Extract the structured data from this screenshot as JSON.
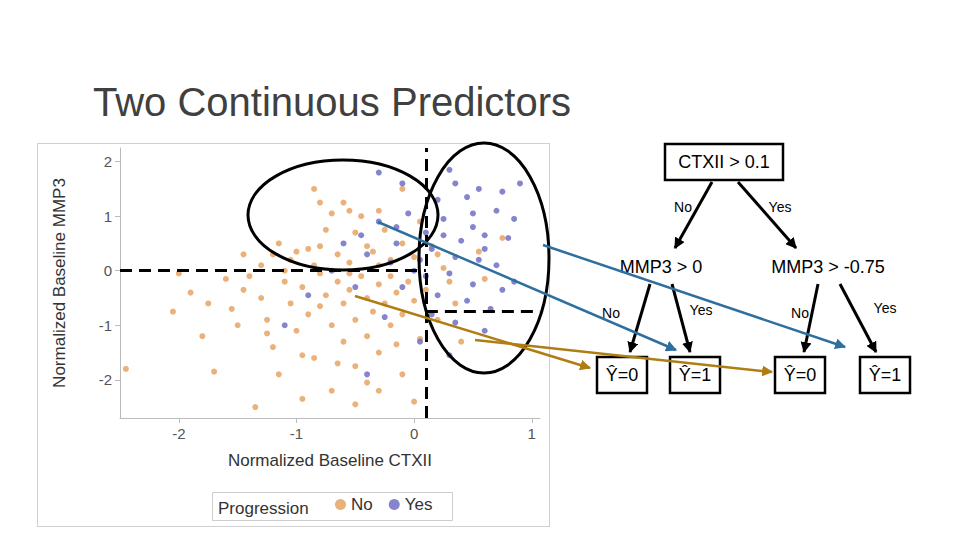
{
  "title": "Two Continuous Predictors",
  "chart_data": {
    "type": "scatter",
    "xlabel": "Normalized Baseline CTXII",
    "ylabel": "Normalized Baseline MMP3",
    "legend_title": "Progression",
    "legend": "bottom",
    "grid": false,
    "xlim": [
      -2.5,
      1.07
    ],
    "ylim": [
      -2.7,
      2.25
    ],
    "xticks": [
      -2,
      -1,
      0,
      1
    ],
    "yticks": [
      -2,
      -1,
      0,
      1,
      2
    ],
    "series": [
      {
        "name": "No",
        "color": "#e8a96c",
        "marker": "circle",
        "x": [
          -0.85,
          -0.8,
          -0.6,
          -0.55,
          -0.3,
          -0.1,
          -0.7,
          -0.5,
          -0.45,
          -0.25,
          -0.1,
          0.05,
          -0.8,
          -0.9,
          -1.0,
          -1.2,
          -1.05,
          -0.65,
          -0.4,
          -0.2,
          0.0,
          0.15,
          0.2,
          0.25,
          -0.3,
          -0.55,
          -0.85,
          -1.3,
          -1.9,
          -2.05,
          -2.45,
          -1.8,
          -1.7,
          -1.55,
          -1.45,
          -1.4,
          -1.3,
          -1.25,
          -1.2,
          -1.15,
          -1.1,
          -1.05,
          -1.0,
          -0.95,
          -0.9,
          -0.85,
          -0.8,
          -0.75,
          -0.7,
          -0.7,
          -0.65,
          -0.6,
          -0.6,
          -0.55,
          -0.5,
          -0.5,
          -0.45,
          -0.4,
          -0.4,
          -0.35,
          -0.3,
          -0.3,
          -0.25,
          -0.2,
          -0.2,
          -0.15,
          -0.1,
          -0.1,
          -0.05,
          0.0,
          0.05,
          0.1,
          0.0,
          -0.4,
          -1.35,
          -0.95,
          -1.6,
          -1.75,
          -1.5,
          -1.1,
          -0.95,
          -0.65,
          -0.3,
          -1.25,
          -0.8,
          -0.55,
          -0.15,
          0.35,
          0.4,
          0.2,
          0.6,
          0.75,
          0.55,
          0.3,
          -0.75,
          -0.35,
          -1.15,
          -1.45,
          -2.0,
          -0.5
        ],
        "values": [
          1.5,
          1.25,
          1.25,
          1.1,
          1.1,
          1.5,
          1.05,
          0.7,
          1.0,
          0.75,
          0.5,
          0.9,
          0.45,
          0.4,
          0.35,
          0.3,
          0.2,
          0.3,
          0.45,
          0.2,
          0.25,
          0.45,
          0.3,
          0.05,
          0.1,
          0.15,
          0.1,
          0.1,
          -0.4,
          -0.75,
          -1.8,
          -1.2,
          -1.85,
          -0.7,
          -0.35,
          -0.1,
          -0.5,
          -0.9,
          -1.4,
          -1.9,
          -0.2,
          -0.6,
          -1.1,
          -0.3,
          -0.8,
          -1.6,
          -0.05,
          -0.45,
          -1.0,
          -2.2,
          -0.2,
          -0.6,
          -1.3,
          -0.35,
          -0.9,
          -1.75,
          -0.1,
          -0.5,
          -1.2,
          -0.75,
          -0.25,
          -1.5,
          -0.6,
          -1.0,
          -0.1,
          -0.4,
          -0.8,
          -1.9,
          -0.2,
          -0.55,
          -1.25,
          -0.35,
          -2.4,
          -2.05,
          -2.5,
          -2.35,
          -0.15,
          -0.6,
          -1.0,
          0.0,
          -1.55,
          -1.7,
          -2.2,
          -1.15,
          -0.65,
          -0.05,
          -1.35,
          -0.6,
          -1.3,
          -0.9,
          -0.15,
          0.6,
          0.35,
          -0.2,
          0.75,
          0.35,
          0.5,
          0.3,
          -0.05,
          -2.45
        ]
      },
      {
        "name": "Yes",
        "color": "#7878c8",
        "marker": "circle",
        "x": [
          -0.3,
          -0.1,
          0.3,
          0.35,
          0.55,
          0.75,
          0.9,
          0.2,
          0.5,
          0.7,
          -0.05,
          -0.3,
          -0.45,
          -0.15,
          -0.6,
          0.1,
          0.25,
          0.4,
          0.6,
          0.8,
          0.15,
          0.35,
          0.55,
          0.7,
          -0.4,
          -0.2,
          0.05,
          0.3,
          0.5,
          0.75,
          0.2,
          0.45,
          -0.1,
          0.65,
          0.15,
          0.35,
          0.6,
          0.05,
          0.3,
          -0.5,
          -0.7,
          -0.9,
          -1.1,
          -0.25,
          0.0,
          0.1,
          0.85,
          0.5,
          0.85,
          -0.4,
          0.45,
          0.25,
          0.6,
          -0.15
        ],
        "values": [
          1.8,
          1.6,
          1.85,
          1.6,
          1.5,
          1.45,
          1.6,
          1.3,
          1.05,
          1.1,
          1.05,
          0.9,
          0.65,
          0.5,
          0.5,
          0.7,
          0.65,
          0.55,
          0.65,
          0.6,
          0.4,
          0.25,
          0.2,
          0.1,
          0.3,
          0.15,
          0.2,
          -0.05,
          -0.25,
          -0.35,
          -0.45,
          -0.55,
          -0.3,
          -0.7,
          -0.8,
          -0.95,
          -1.1,
          -1.3,
          -1.55,
          -0.3,
          0.0,
          -0.45,
          -1.0,
          -0.85,
          0.0,
          -0.1,
          -0.2,
          0.8,
          0.95,
          -1.9,
          1.35,
          0.95,
          0.4,
          0.8
        ]
      }
    ]
  },
  "tree": {
    "root": {
      "label": "CTXII > 0.1",
      "axis": "x",
      "threshold": 0.1,
      "edges": [
        "No",
        "Yes"
      ],
      "no": {
        "label": "MMP3 > 0",
        "axis": "y",
        "threshold": 0,
        "edges": [
          "No",
          "Yes"
        ],
        "no": {
          "label": "Ŷ=0"
        },
        "yes": {
          "label": "Ŷ=1"
        }
      },
      "yes": {
        "label": "MMP3 > -0.75",
        "axis": "y",
        "threshold": -0.75,
        "edges": [
          "No",
          "Yes"
        ],
        "no": {
          "label": "Ŷ=0"
        },
        "yes": {
          "label": "Ŷ=1"
        }
      }
    }
  }
}
